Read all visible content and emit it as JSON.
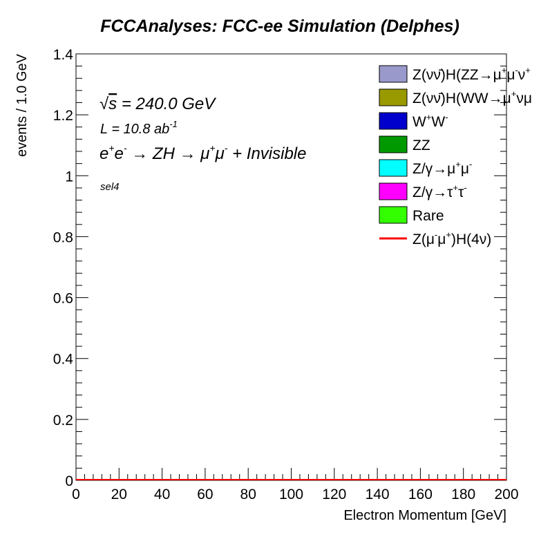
{
  "chart_data": {
    "type": "bar",
    "title": "FCCAnalyses: FCC-ee Simulation (Delphes)",
    "xlabel": "Electron Momentum [GeV]",
    "ylabel": "events / 1.0 GeV",
    "xlim": [
      0,
      200
    ],
    "ylim": [
      0,
      1.4
    ],
    "x_ticks": [
      "0",
      "20",
      "40",
      "60",
      "80",
      "100",
      "120",
      "140",
      "160",
      "180",
      "200"
    ],
    "y_ticks": [
      "0",
      "0.2",
      "0.4",
      "0.6",
      "0.8",
      "1",
      "1.2",
      "1.4"
    ],
    "annotations": {
      "sqrt_s_symbol": "√",
      "sqrt_s_var": "s",
      "sqrt_s_value": " = 240.0 GeV",
      "lumi_text": "L = 10.8 ab",
      "lumi_exp": "-1",
      "process": {
        "e": "e",
        "plus": "+",
        "e2": "e",
        "minus": "-",
        "arrow1": " → ZH → ",
        "mu": "μ",
        "mu2": "μ",
        "tail": " + Invisible"
      },
      "selection": "sel4"
    },
    "legend_placement": "top-right",
    "legend": [
      {
        "parts": [
          {
            "t": "Z(νν̄)H(ZZ→μ"
          },
          {
            "t": "+",
            "s": "sup"
          },
          {
            "t": "μ"
          },
          {
            "t": "-",
            "s": "sup"
          },
          {
            "t": "ν"
          },
          {
            "t": "+",
            "s": "sup"
          }
        ],
        "color": "#9999cc",
        "kind": "box"
      },
      {
        "parts": [
          {
            "t": "Z(νν̄)H(WW→μ"
          },
          {
            "t": "+",
            "s": "sup"
          },
          {
            "t": "νμ"
          }
        ],
        "color": "#999900",
        "kind": "box"
      },
      {
        "parts": [
          {
            "t": "W"
          },
          {
            "t": "+",
            "s": "sup"
          },
          {
            "t": "W"
          },
          {
            "t": "-",
            "s": "sup"
          }
        ],
        "color": "#0000cc",
        "kind": "box"
      },
      {
        "parts": [
          {
            "t": "ZZ"
          }
        ],
        "color": "#009900",
        "kind": "box"
      },
      {
        "parts": [
          {
            "t": "Z/γ→μ"
          },
          {
            "t": "+",
            "s": "sup"
          },
          {
            "t": "μ"
          },
          {
            "t": "-",
            "s": "sup"
          }
        ],
        "color": "#00ffff",
        "kind": "box"
      },
      {
        "parts": [
          {
            "t": "Z/γ→τ"
          },
          {
            "t": "+",
            "s": "sup"
          },
          {
            "t": "τ"
          },
          {
            "t": "-",
            "s": "sup"
          }
        ],
        "color": "#ff00ff",
        "kind": "box"
      },
      {
        "parts": [
          {
            "t": "Rare"
          }
        ],
        "color": "#33ff00",
        "kind": "box"
      },
      {
        "parts": [
          {
            "t": "Z(μ"
          },
          {
            "t": "-",
            "s": "sup"
          },
          {
            "t": "μ"
          },
          {
            "t": "+",
            "s": "sup"
          },
          {
            "t": ")H(4ν)"
          }
        ],
        "color": "#ff0000",
        "kind": "line"
      }
    ],
    "series": [
      {
        "name": "Z(μ-μ+)H(4ν)",
        "x": [
          0,
          200
        ],
        "values": [
          0,
          0
        ],
        "color": "#ff0000"
      }
    ],
    "grid": false
  }
}
